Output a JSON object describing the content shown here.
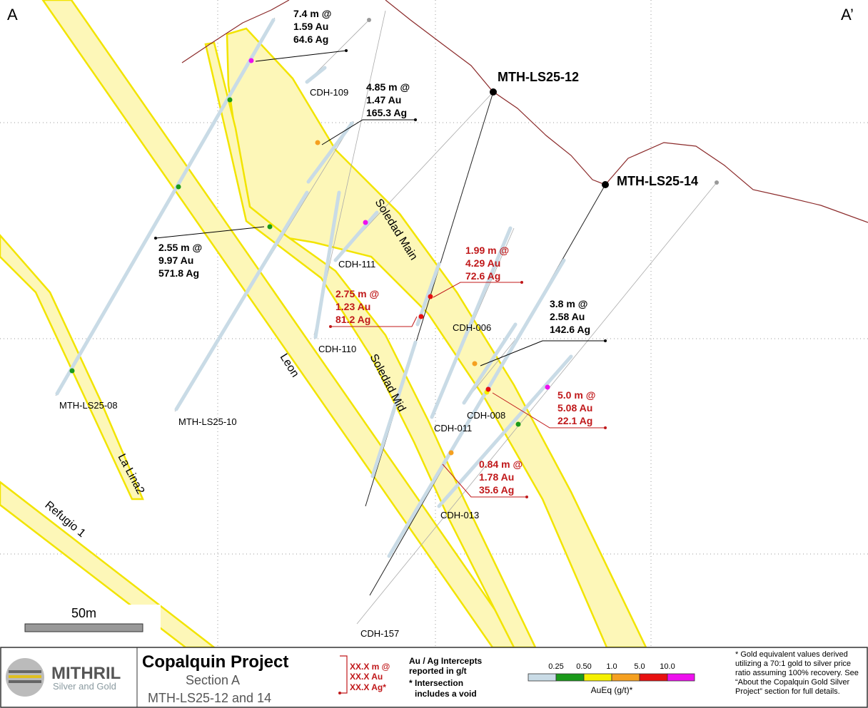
{
  "section_ends": {
    "left": "A",
    "right": "A’"
  },
  "collars": [
    "MTH-LS25-12",
    "MTH-LS25-14"
  ],
  "holes": [
    "CDH-109",
    "CDH-111",
    "CDH-110",
    "CDH-006",
    "CDH-008",
    "CDH-011",
    "CDH-013",
    "CDH-157",
    "MTH-LS25-08",
    "MTH-LS25-10"
  ],
  "veins": [
    "Soledad Main",
    "Soledad Mid",
    "Leon",
    "La Lina2",
    "Refugio 1"
  ],
  "intercepts": [
    {
      "lines": [
        "7.4 m @",
        "1.59 Au",
        "64.6 Ag"
      ]
    },
    {
      "lines": [
        "4.85 m @",
        "1.47 Au",
        "165.3 Ag"
      ]
    },
    {
      "lines": [
        "2.55 m @",
        "9.97 Au",
        "571.8 Ag"
      ]
    },
    {
      "lines": [
        "3.8 m @",
        "2.58 Au",
        "142.6 Ag"
      ]
    },
    {
      "lines": [
        "1.99 m @",
        "4.29 Au",
        "72.6 Ag"
      ]
    },
    {
      "lines": [
        "2.75 m @",
        "1.23 Au",
        "81.2 Ag"
      ]
    },
    {
      "lines": [
        "5.0 m @",
        "5.08 Au",
        "22.1 Ag"
      ]
    },
    {
      "lines": [
        "0.84 m @",
        "1.78 Au",
        "35.6 Ag"
      ]
    }
  ],
  "scale_bar": "50m",
  "footer": {
    "logo": {
      "name": "MITHRIL",
      "tagline": "Silver and Gold"
    },
    "title": "Copalquin Project",
    "subtitle": "Section A",
    "holes": "MTH-LS25-12 and 14",
    "intercept_key": [
      "XX.X m @",
      "XX.X Au",
      "XX.X Ag*"
    ],
    "intercept_note": [
      "Au / Ag Intercepts",
      "reported in g/t",
      "* Intersection",
      "includes a void"
    ],
    "scale_ticks": [
      "0.25",
      "0.50",
      "1.0",
      "5.0",
      "10.0"
    ],
    "scale_title": "AuEq (g/t)*",
    "note": [
      "* Gold equivalent values derived",
      "utilizing a 70:1 gold to silver price",
      "ratio assuming 100% recovery. See",
      "“About the Copalquin Gold Silver",
      "Project” section for full details."
    ]
  }
}
